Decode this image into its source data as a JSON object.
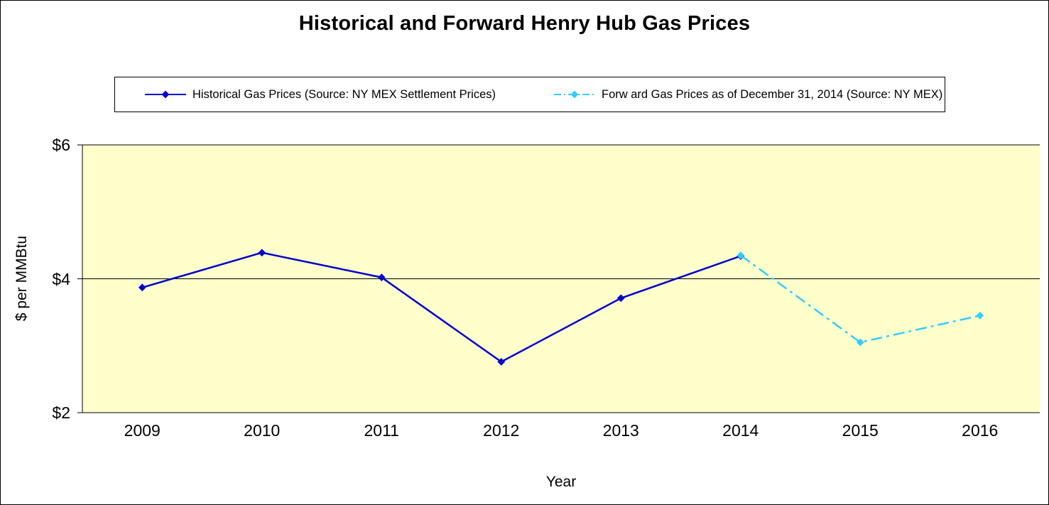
{
  "chart_data": {
    "type": "line",
    "title": "Historical and Forward Henry Hub Gas Prices",
    "xlabel": "Year",
    "ylabel": "$ per MMBtu",
    "categories": [
      "2009",
      "2010",
      "2011",
      "2012",
      "2013",
      "2014",
      "2015",
      "2016"
    ],
    "series": [
      {
        "name": "Historical Gas Prices (Source: NY MEX Settlement Prices)",
        "color": "#0000CC",
        "line_style": "solid",
        "marker": "diamond",
        "values": [
          3.87,
          4.39,
          4.02,
          2.76,
          3.71,
          4.34,
          null,
          null
        ]
      },
      {
        "name": "Forw ard Gas Prices as of December 31, 2014 (Source: NY MEX)",
        "color": "#33CCFF",
        "line_style": "dash-dot",
        "marker": "diamond",
        "values": [
          null,
          null,
          null,
          null,
          null,
          4.35,
          3.05,
          3.45
        ]
      }
    ],
    "ylim": [
      2,
      6
    ],
    "yticks": [
      {
        "value": 6,
        "label": "$6"
      },
      {
        "value": 4,
        "label": "$4"
      },
      {
        "value": 2,
        "label": "$2"
      }
    ],
    "grid": "horizontal",
    "legend_position": "top",
    "plot_background": "#FFFFCC",
    "axis_color": "#000000"
  }
}
